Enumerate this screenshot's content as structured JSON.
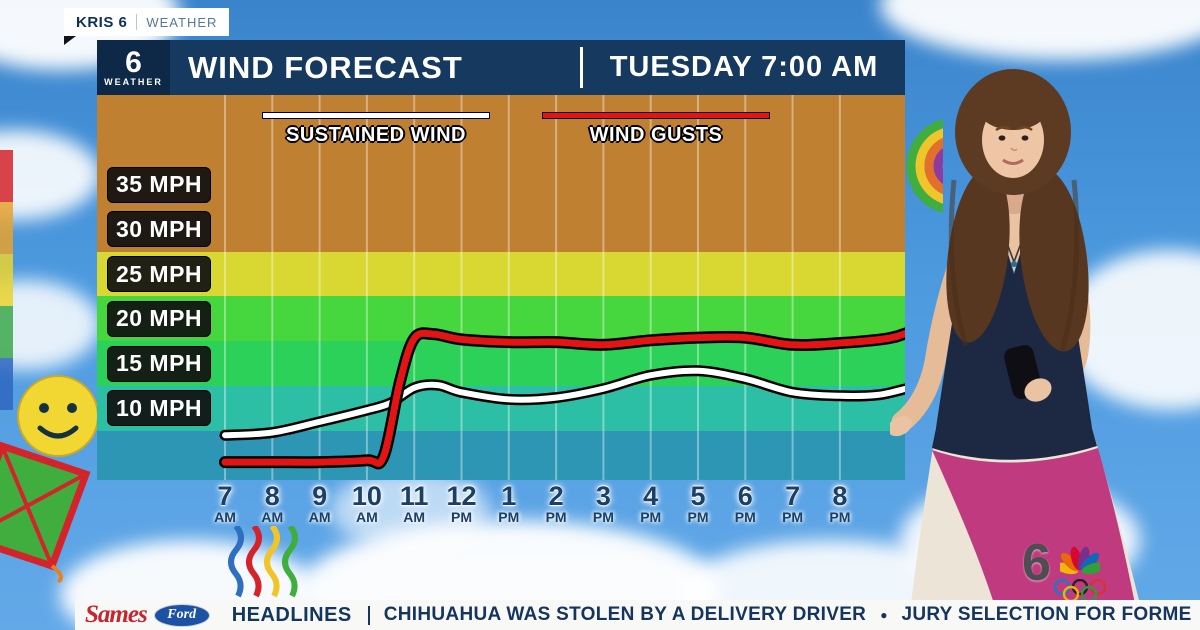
{
  "bug": {
    "station": "KRIS 6",
    "section": "WEATHER"
  },
  "logo": {
    "number": "6",
    "label": "WEATHER"
  },
  "header": {
    "title": "WIND FORECAST",
    "timestamp": "TUESDAY 7:00 AM"
  },
  "chart_data": {
    "type": "line",
    "title": "WIND FORECAST",
    "x_categories": [
      {
        "num": "7",
        "period": "AM"
      },
      {
        "num": "8",
        "period": "AM"
      },
      {
        "num": "9",
        "period": "AM"
      },
      {
        "num": "10",
        "period": "AM"
      },
      {
        "num": "11",
        "period": "AM"
      },
      {
        "num": "12",
        "period": "PM"
      },
      {
        "num": "1",
        "period": "PM"
      },
      {
        "num": "2",
        "period": "PM"
      },
      {
        "num": "3",
        "period": "PM"
      },
      {
        "num": "4",
        "period": "PM"
      },
      {
        "num": "5",
        "period": "PM"
      },
      {
        "num": "6",
        "period": "PM"
      },
      {
        "num": "7",
        "period": "PM"
      },
      {
        "num": "8",
        "period": "PM"
      }
    ],
    "y_unit": "MPH",
    "yticks": [
      35,
      30,
      25,
      20,
      15,
      10
    ],
    "ylim": [
      2,
      45
    ],
    "grid": "vertical-hour-lines",
    "legend_position": "top",
    "bands": [
      {
        "from_mph": 27.5,
        "to_mph": 45,
        "color": "#bf8031"
      },
      {
        "from_mph": 22.5,
        "to_mph": 27.5,
        "color": "#d9d832"
      },
      {
        "from_mph": 17.5,
        "to_mph": 22.5,
        "color": "#46d63e"
      },
      {
        "from_mph": 12.5,
        "to_mph": 17.5,
        "color": "#2cd159"
      },
      {
        "from_mph": 7.5,
        "to_mph": 12.5,
        "color": "#2cbfa6"
      },
      {
        "from_mph": 2,
        "to_mph": 7.5,
        "color": "#2d96b5"
      }
    ],
    "series": [
      {
        "name": "SUSTAINED WIND",
        "color": "#ffffff",
        "values_mph": [
          7,
          7.5,
          8.5,
          10,
          12,
          11.5,
          11,
          11,
          12,
          13.5,
          14,
          13,
          12,
          11.5
        ],
        "profile": [
          [
            7,
            7
          ],
          [
            8,
            7.3
          ],
          [
            9,
            8.5
          ],
          [
            10,
            9.8
          ],
          [
            10.5,
            10.6
          ],
          [
            11,
            12.3
          ],
          [
            11.5,
            12.6
          ],
          [
            12,
            11.8
          ],
          [
            13,
            11
          ],
          [
            14,
            11.2
          ],
          [
            15,
            12.2
          ],
          [
            16,
            13.7
          ],
          [
            17,
            14.2
          ],
          [
            18,
            13.3
          ],
          [
            19,
            11.8
          ],
          [
            20,
            11.4
          ],
          [
            20.8,
            11.5
          ],
          [
            21.4,
            12.2
          ]
        ]
      },
      {
        "name": "WIND GUSTS",
        "color": "#e31414",
        "values_mph": [
          4,
          4,
          4,
          4.5,
          18,
          17.5,
          17.5,
          17.5,
          17,
          17.5,
          18,
          18,
          17,
          17.5
        ],
        "profile": [
          [
            7,
            4
          ],
          [
            8,
            4
          ],
          [
            9,
            4
          ],
          [
            10,
            4.2
          ],
          [
            10.35,
            4.6
          ],
          [
            10.7,
            13
          ],
          [
            11,
            17.8
          ],
          [
            11.4,
            18.3
          ],
          [
            12,
            17.7
          ],
          [
            13,
            17.4
          ],
          [
            14,
            17.4
          ],
          [
            15,
            17.1
          ],
          [
            16,
            17.6
          ],
          [
            17,
            17.9
          ],
          [
            18,
            17.9
          ],
          [
            19,
            17.1
          ],
          [
            20,
            17.3
          ],
          [
            21,
            17.8
          ],
          [
            21.4,
            18.4
          ]
        ]
      }
    ]
  },
  "ticker": {
    "sponsor": "Sames",
    "sponsor_sub": "Ford",
    "section": "HEADLINES",
    "separator": "●",
    "items": [
      "CHIHUAHUA WAS STOLEN BY A DELIVERY DRIVER",
      "JURY SELECTION FOR FORME"
    ]
  },
  "nbc": {
    "number": "6"
  },
  "colors": {
    "header_navy": "#16395f",
    "ticker_text": "#16355c",
    "sky_blue": "#4d9adf"
  },
  "icons": [
    "kite-icon",
    "smiley-balloon-icon",
    "rainbow-squiggle-icon",
    "rainbow-arc-icon",
    "ribbon-stripes-icon",
    "nbc-peacock-icon",
    "olympic-rings-icon",
    "ford-logo-icon"
  ]
}
